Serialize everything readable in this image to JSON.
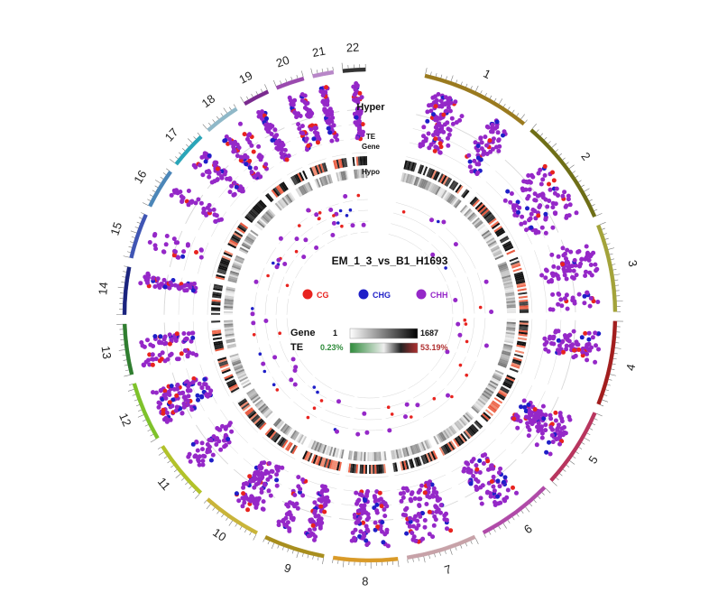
{
  "title": "EM_1_3_vs_B1_H1693",
  "chromosomes": [
    {
      "name": "1",
      "color": "#9a7a1e"
    },
    {
      "name": "2",
      "color": "#6e6e16"
    },
    {
      "name": "3",
      "color": "#a3a33a"
    },
    {
      "name": "4",
      "color": "#a21e1e"
    },
    {
      "name": "5",
      "color": "#b8355e"
    },
    {
      "name": "6",
      "color": "#b04aa8"
    },
    {
      "name": "7",
      "color": "#c7a2a8"
    },
    {
      "name": "8",
      "color": "#d99a28"
    },
    {
      "name": "9",
      "color": "#a88e1e"
    },
    {
      "name": "10",
      "color": "#c9b43a"
    },
    {
      "name": "11",
      "color": "#b2c22a"
    },
    {
      "name": "12",
      "color": "#7ec22a"
    },
    {
      "name": "13",
      "color": "#2f7d2f"
    },
    {
      "name": "14",
      "color": "#1a237e"
    },
    {
      "name": "15",
      "color": "#3f55b4"
    },
    {
      "name": "16",
      "color": "#4b86b8"
    },
    {
      "name": "17",
      "color": "#2aa5b8"
    },
    {
      "name": "18",
      "color": "#8fb8c8"
    },
    {
      "name": "19",
      "color": "#7a2a8e"
    },
    {
      "name": "20",
      "color": "#9a4aae"
    },
    {
      "name": "21",
      "color": "#b887c8"
    },
    {
      "name": "22",
      "color": "#333333"
    }
  ],
  "track_labels": {
    "hyper": "Hyper",
    "te": "TE",
    "gene": "Gene",
    "hypo": "Hypo"
  },
  "context_legend": [
    {
      "label": "CG",
      "color": "#e8231f"
    },
    {
      "label": "CHG",
      "color": "#1f1fc8"
    },
    {
      "label": "CHH",
      "color": "#9528c8"
    }
  ],
  "density_legend": {
    "gene": {
      "label": "Gene",
      "min": "1",
      "max": "1687"
    },
    "te": {
      "label": "TE",
      "min": "0.23%",
      "max": "53.19%",
      "min_color": "#2e8b3a",
      "max_color": "#b03030"
    }
  }
}
